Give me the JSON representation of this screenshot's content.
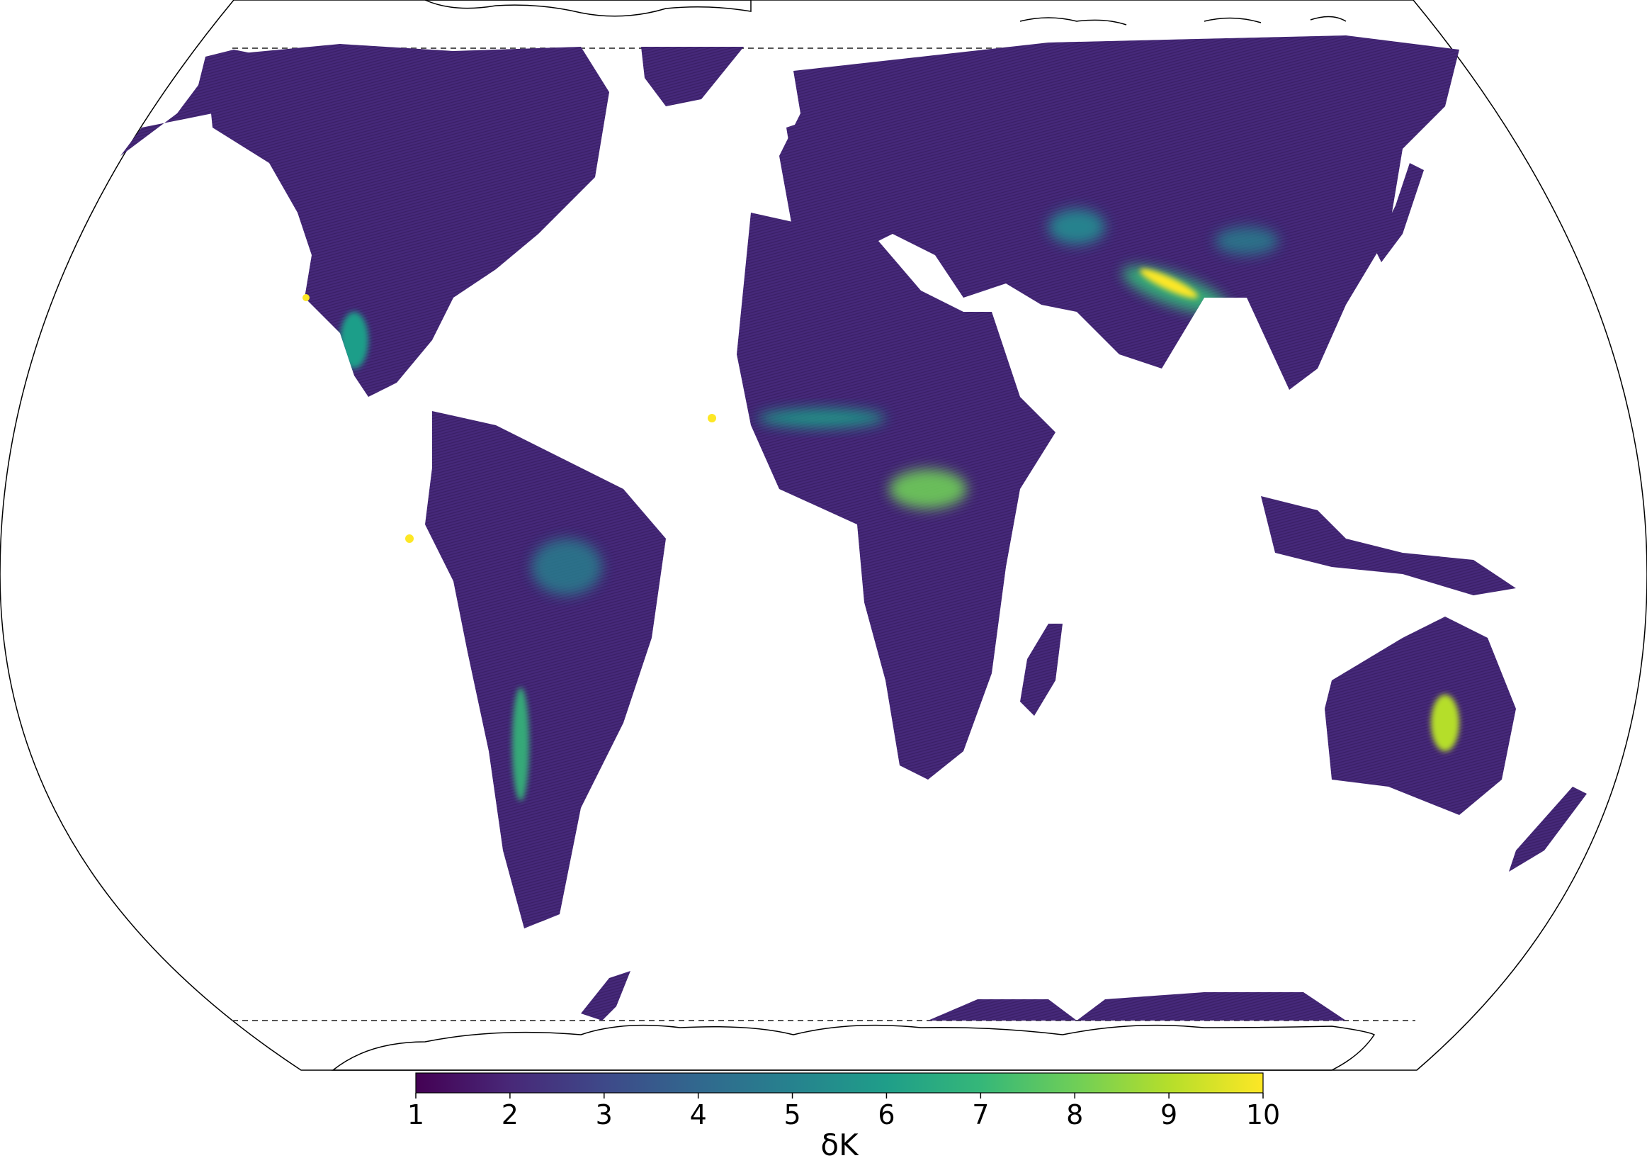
{
  "colorbar": {
    "label": "δK",
    "min": 1,
    "max": 10,
    "ticks": [
      "1",
      "2",
      "3",
      "4",
      "5",
      "6",
      "7",
      "8",
      "9",
      "10"
    ],
    "colormap": "viridis",
    "stops": [
      "#440154",
      "#482878",
      "#3e4989",
      "#31688e",
      "#26828e",
      "#1f9e89",
      "#35b779",
      "#6ece58",
      "#b5de2b",
      "#fde725"
    ]
  },
  "map": {
    "projection": "pseudo-cylindrical world projection",
    "coverage_boundaries": "dashed latitude lines north and south",
    "land_base_color": "#46297a",
    "hotspot_high_color": "#fde725",
    "hotspot_mid_color": "#35b779"
  }
}
